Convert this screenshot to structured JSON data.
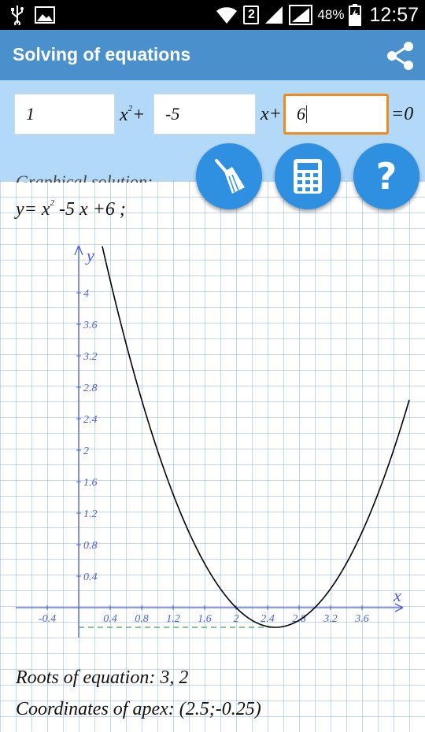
{
  "status_bar": {
    "sim_slot": "2",
    "battery": "48%",
    "time": "12:57"
  },
  "app": {
    "title": "Solving of equations"
  },
  "equation": {
    "a": "1",
    "b": "-5",
    "c": "6",
    "x2_label": "x",
    "x2_exp": "2",
    "plus1": "+",
    "x_label": "x+",
    "rhs": "=0"
  },
  "solution": {
    "heading": "Graphical solution:",
    "function_prefix": "y= x",
    "function_exp": "2",
    "function_suffix": " -5 x +6 ;",
    "roots_text": "Roots of equation: 3, 2",
    "apex_text": "Coordinates of apex: (2.5;-0.25)"
  },
  "chart_data": {
    "type": "line",
    "function": "y = x^2 - 5x + 6",
    "xlabel": "x",
    "ylabel": "y",
    "xlim": [
      -0.8,
      4.1
    ],
    "ylim": [
      -0.35,
      4.5
    ],
    "x_ticks": [
      -0.4,
      0.4,
      0.8,
      1.2,
      1.6,
      2,
      2.4,
      2.8,
      3.2,
      3.6
    ],
    "y_ticks": [
      0.4,
      0.8,
      1.2,
      1.6,
      2,
      2.4,
      2.8,
      3.2,
      3.6,
      4
    ],
    "x_range": [
      0.3,
      4.2
    ],
    "apex": [
      2.5,
      -0.25
    ],
    "roots": [
      2,
      3
    ],
    "colors": {
      "axis": "#4a5fd6",
      "curve": "#000000",
      "apex_line": "#3aa04a"
    }
  },
  "icons": {
    "share": "share-icon",
    "clear": "broom-icon",
    "calculator": "calculator-icon",
    "help": "help-icon",
    "help_glyph": "?"
  }
}
